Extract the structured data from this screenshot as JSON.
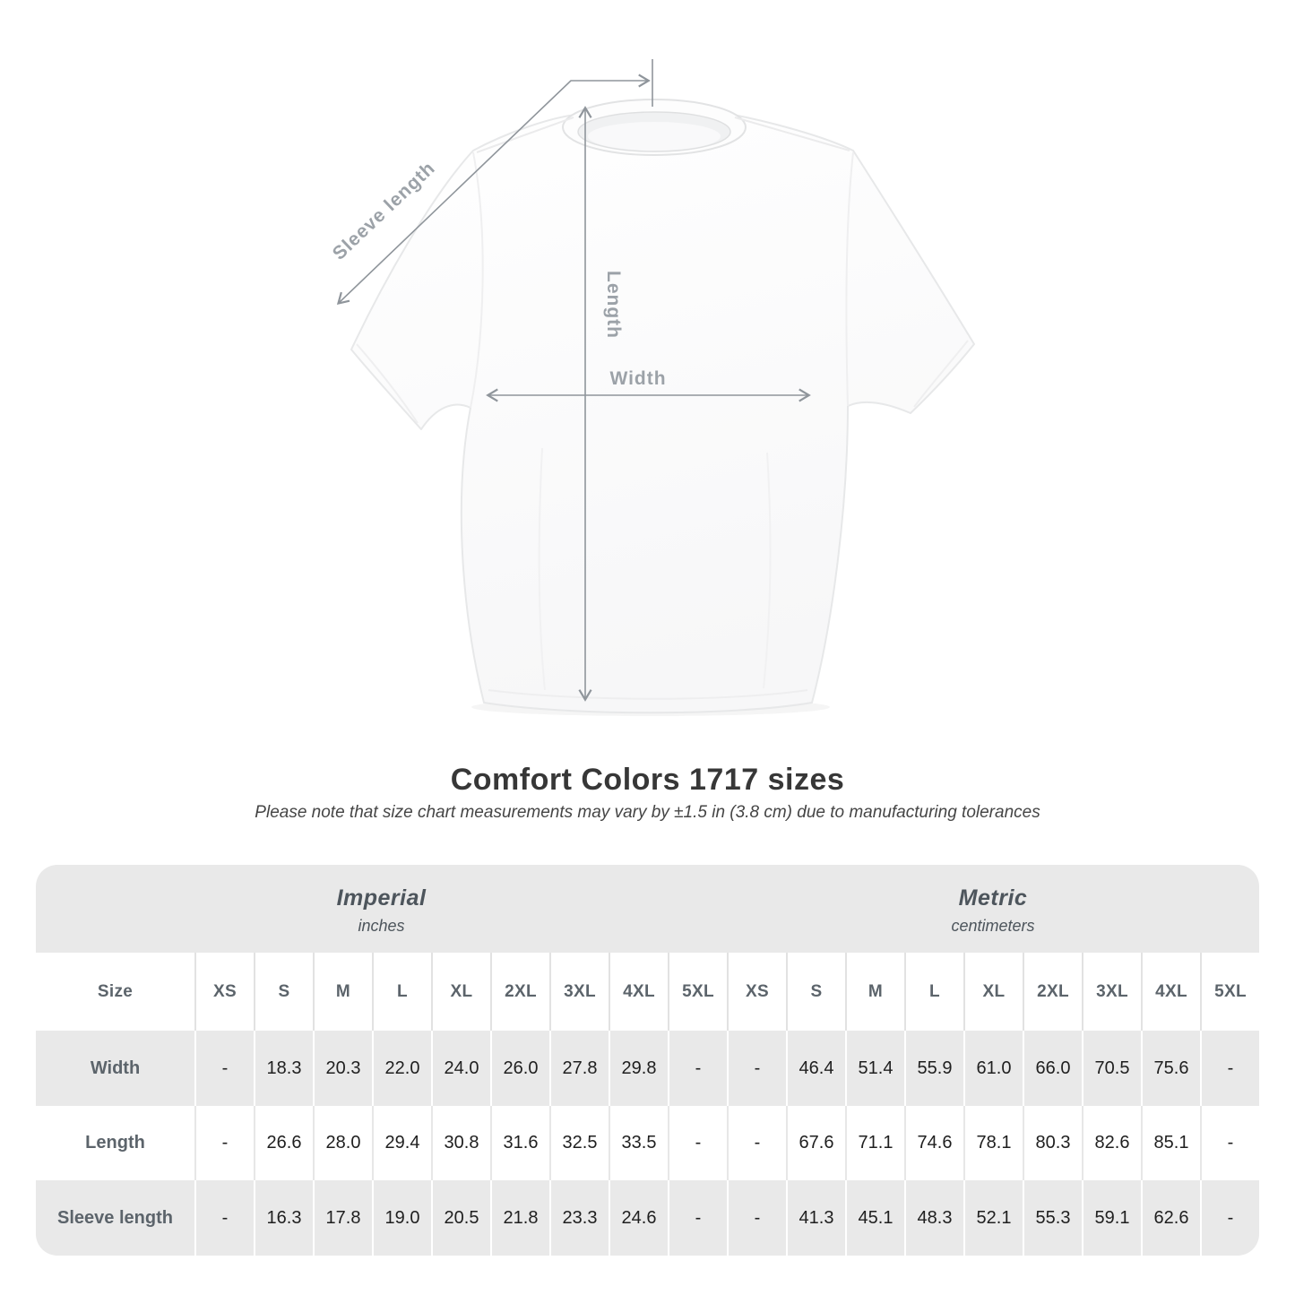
{
  "page": {
    "background": "#ffffff"
  },
  "diagram": {
    "sleeve_label": "Sleeve length",
    "length_label": "Length",
    "width_label": "Width",
    "line_color": "#8f959b",
    "label_color": "#9ca2a8"
  },
  "heading": {
    "title": "Comfort Colors 1717 sizes",
    "subtitle": "Please note that size chart measurements may vary by ±1.5 in (3.8 cm) due to manufacturing tolerances"
  },
  "table": {
    "stripe_color": "#e9e9e9",
    "unit_groups": [
      {
        "label": "Imperial",
        "sublabel": "inches"
      },
      {
        "label": "Metric",
        "sublabel": "centimeters"
      }
    ],
    "size_header": "Size",
    "sizes": [
      "XS",
      "S",
      "M",
      "L",
      "XL",
      "2XL",
      "3XL",
      "4XL",
      "5XL"
    ],
    "rows": [
      {
        "label": "Width",
        "imperial": [
          "-",
          "18.3",
          "20.3",
          "22.0",
          "24.0",
          "26.0",
          "27.8",
          "29.8",
          "-"
        ],
        "metric": [
          "-",
          "46.4",
          "51.4",
          "55.9",
          "61.0",
          "66.0",
          "70.5",
          "75.6",
          "-"
        ]
      },
      {
        "label": "Length",
        "imperial": [
          "-",
          "26.6",
          "28.0",
          "29.4",
          "30.8",
          "31.6",
          "32.5",
          "33.5",
          "-"
        ],
        "metric": [
          "-",
          "67.6",
          "71.1",
          "74.6",
          "78.1",
          "80.3",
          "82.6",
          "85.1",
          "-"
        ]
      },
      {
        "label": "Sleeve length",
        "imperial": [
          "-",
          "16.3",
          "17.8",
          "19.0",
          "20.5",
          "21.8",
          "23.3",
          "24.6",
          "-"
        ],
        "metric": [
          "-",
          "41.3",
          "45.1",
          "48.3",
          "52.1",
          "55.3",
          "59.1",
          "62.6",
          "-"
        ]
      }
    ]
  }
}
